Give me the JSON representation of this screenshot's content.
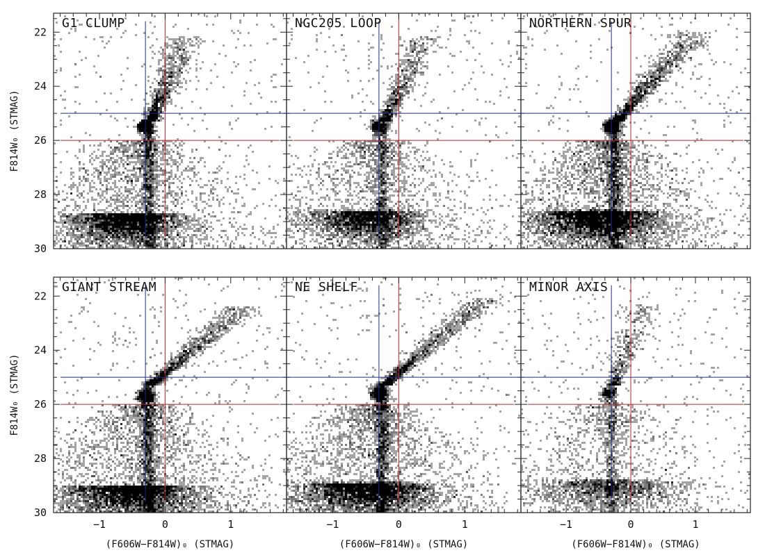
{
  "chart_data": [
    {
      "type": "scatter",
      "title": "G1 CLUMP",
      "xlim": [
        -1.7,
        1.85
      ],
      "ylim": [
        30.0,
        21.3
      ],
      "xticks": [
        -1,
        0,
        1
      ],
      "xtick_labels": [
        "−1",
        "0",
        "1"
      ],
      "yticks": [
        22,
        24,
        26,
        28,
        30
      ],
      "ytick_labels": [
        "22",
        "24",
        "26",
        "28",
        "30"
      ],
      "ylabel": "F814W₀ (STMAG)",
      "xlabel": "",
      "reference_lines": {
        "blue_vertical_x": -0.3,
        "red_vertical_x": 0.0,
        "blue_horizontal_y": 25.0,
        "red_horizontal_y": 26.0
      },
      "features": {
        "red_clump": [
          -0.3,
          25.5
        ],
        "rgb_tip": [
          0.3,
          22.2
        ],
        "ms_center": [
          -0.6,
          28.7
        ],
        "ms_spread": 0.35,
        "ms_weight": 1.1,
        "stream_density": 1.0
      }
    },
    {
      "type": "scatter",
      "title": "NGC205 LOOP",
      "xlim": [
        -1.7,
        1.85
      ],
      "ylim": [
        30.0,
        21.3
      ],
      "xticks": [
        -1,
        0,
        1
      ],
      "xtick_labels": [
        "−1",
        "0",
        "1"
      ],
      "yticks": [
        22,
        24,
        26,
        28,
        30
      ],
      "ytick_labels": [
        "",
        "",
        "",
        "",
        ""
      ],
      "ylabel": "",
      "xlabel": "",
      "reference_lines": {
        "blue_vertical_x": -0.3,
        "red_vertical_x": 0.0,
        "blue_horizontal_y": 25.0,
        "red_horizontal_y": 26.0
      },
      "features": {
        "red_clump": [
          -0.3,
          25.5
        ],
        "rgb_tip": [
          0.4,
          22.2
        ],
        "ms_center": [
          -0.5,
          28.6
        ],
        "ms_spread": 0.35,
        "ms_weight": 0.85,
        "stream_density": 0.8
      }
    },
    {
      "type": "scatter",
      "title": "NORTHERN SPUR",
      "xlim": [
        -1.7,
        1.85
      ],
      "ylim": [
        30.0,
        21.3
      ],
      "xticks": [
        -1,
        0,
        1
      ],
      "xtick_labels": [
        "−1",
        "0",
        "1"
      ],
      "yticks": [
        22,
        24,
        26,
        28,
        30
      ],
      "ytick_labels": [
        "",
        "",
        "",
        "",
        ""
      ],
      "ylabel": "",
      "xlabel": "",
      "reference_lines": {
        "blue_vertical_x": -0.3,
        "red_vertical_x": 0.0,
        "blue_horizontal_y": 25.0,
        "red_horizontal_y": 26.0
      },
      "features": {
        "red_clump": [
          -0.3,
          25.5
        ],
        "rgb_tip": [
          1.0,
          22.0
        ],
        "ms_center": [
          -0.5,
          28.6
        ],
        "ms_spread": 0.4,
        "ms_weight": 1.3,
        "stream_density": 1.2
      }
    },
    {
      "type": "scatter",
      "title": "GIANT STREAM",
      "xlim": [
        -1.7,
        1.85
      ],
      "ylim": [
        30.0,
        21.3
      ],
      "xticks": [
        -1,
        0,
        1
      ],
      "xtick_labels": [
        "−1",
        "0",
        "1"
      ],
      "yticks": [
        22,
        24,
        26,
        28,
        30
      ],
      "ytick_labels": [
        "22",
        "24",
        "26",
        "28",
        "30"
      ],
      "ylabel": "F814W₀ (STMAG)",
      "xlabel": "(F606W−F814W)₀ (STMAG)",
      "reference_lines": {
        "blue_vertical_x": -0.3,
        "red_vertical_x": 0.0,
        "blue_horizontal_y": 25.0,
        "red_horizontal_y": 26.0
      },
      "features": {
        "red_clump": [
          -0.3,
          25.7
        ],
        "rgb_tip": [
          1.2,
          22.4
        ],
        "ms_center": [
          -0.5,
          29.0
        ],
        "ms_spread": 0.4,
        "ms_weight": 1.25,
        "stream_density": 1.1
      }
    },
    {
      "type": "scatter",
      "title": "NE SHELF",
      "xlim": [
        -1.7,
        1.85
      ],
      "ylim": [
        30.0,
        21.3
      ],
      "xticks": [
        -1,
        0,
        1
      ],
      "xtick_labels": [
        "−1",
        "0",
        "1"
      ],
      "yticks": [
        22,
        24,
        26,
        28,
        30
      ],
      "ytick_labels": [
        "",
        "",
        "",
        "",
        ""
      ],
      "ylabel": "",
      "xlabel": "(F606W−F814W)₀ (STMAG)",
      "reference_lines": {
        "blue_vertical_x": -0.3,
        "red_vertical_x": 0.0,
        "blue_horizontal_y": 25.0,
        "red_horizontal_y": 26.0
      },
      "features": {
        "red_clump": [
          -0.3,
          25.6
        ],
        "rgb_tip": [
          1.3,
          22.1
        ],
        "ms_center": [
          -0.5,
          28.9
        ],
        "ms_spread": 0.4,
        "ms_weight": 1.2,
        "stream_density": 1.1
      }
    },
    {
      "type": "scatter",
      "title": "MINOR AXIS",
      "xlim": [
        -1.7,
        1.85
      ],
      "ylim": [
        30.0,
        21.3
      ],
      "xticks": [
        -1,
        0,
        1
      ],
      "xtick_labels": [
        "−1",
        "0",
        "1"
      ],
      "yticks": [
        22,
        24,
        26,
        28,
        30
      ],
      "ytick_labels": [
        "",
        "",
        "",
        "",
        ""
      ],
      "ylabel": "",
      "xlabel": "(F606W−F814W)₀ (STMAG)",
      "reference_lines": {
        "blue_vertical_x": -0.3,
        "red_vertical_x": 0.0,
        "blue_horizontal_y": 25.0,
        "red_horizontal_y": 26.0
      },
      "features": {
        "red_clump": [
          -0.35,
          25.6
        ],
        "rgb_tip": [
          0.2,
          22.3
        ],
        "ms_center": [
          -0.4,
          28.8
        ],
        "ms_spread": 0.45,
        "ms_weight": 0.55,
        "stream_density": 0.5
      }
    }
  ],
  "colors": {
    "blue_line": "#1b2a8c",
    "red_line": "#cc1f1f",
    "points": "#000000",
    "frame": "#222222"
  }
}
